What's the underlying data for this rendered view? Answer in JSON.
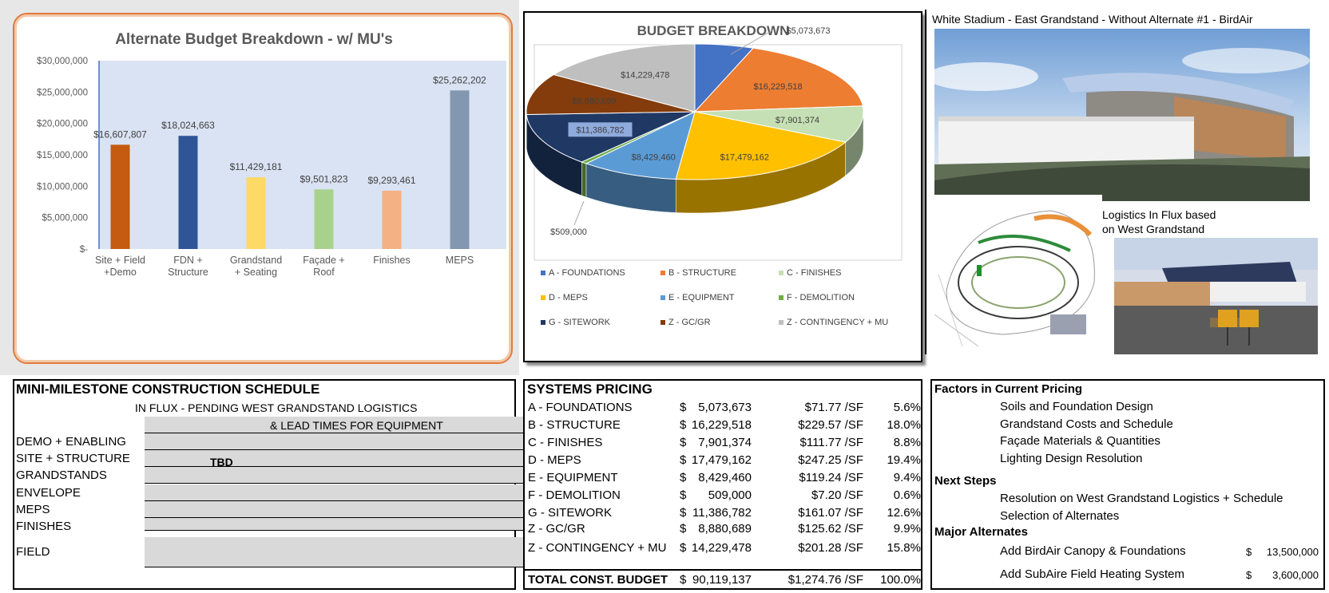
{
  "bar_chart": {
    "title": "Alternate Budget Breakdown - w/ MU's",
    "colors": [
      "#c55a11",
      "#2f5597",
      "#ffd966",
      "#a9d18e",
      "#f4b183",
      "#8497b0"
    ],
    "plot_bg": "#dae3f3"
  },
  "pie_chart": {
    "title": "BUDGET BREAKDOWN",
    "legend_order": [
      0,
      1,
      2,
      3,
      4,
      5,
      6,
      7,
      8
    ]
  },
  "chart_data": [
    {
      "type": "bar",
      "title": "Alternate Budget Breakdown - w/ MU's",
      "categories": [
        "Site + Field\n+Demo",
        "FDN +\nStructure",
        "Grandstand\n+ Seating",
        "Façade +\nRoof",
        "Finishes",
        "MEPS"
      ],
      "values": [
        16607807,
        18024663,
        11429181,
        9501823,
        9293461,
        25262202
      ],
      "value_labels": [
        "$16,607,807",
        "$18,024,663",
        "$11,429,181",
        "$9,501,823",
        "$9,293,461",
        "$25,262,202"
      ],
      "ytick_values": [
        30000000,
        25000000,
        20000000,
        15000000,
        10000000,
        5000000,
        0
      ],
      "ytick_labels": [
        "$30,000,000",
        "$25,000,000",
        "$20,000,000",
        "$15,000,000",
        "$10,000,000",
        "$5,000,000",
        "$-"
      ],
      "ylim": [
        0,
        30000000
      ],
      "xlabel": "",
      "ylabel": ""
    },
    {
      "type": "pie",
      "title": "BUDGET BREAKDOWN",
      "labels": [
        "A - FOUNDATIONS",
        "B - STRUCTURE",
        "C - FINISHES",
        "D - MEPS",
        "E - EQUIPMENT",
        "F - DEMOLITION",
        "G - SITEWORK",
        "Z - GC/GR",
        "Z - CONTINGENCY + MU"
      ],
      "values": [
        5073673,
        16229518,
        7901374,
        17479162,
        8429460,
        509000,
        11386782,
        8880689,
        14229478
      ],
      "value_labels": [
        "$5,073,673",
        "$16,229,518",
        "$7,901,374",
        "$17,479,162",
        "$8,429,460",
        "$509,000",
        "$11,386,782",
        "$8,880,689",
        "$14,229,478"
      ],
      "colors": [
        "#4472c4",
        "#ed7d31",
        "#c5e0b4",
        "#ffc000",
        "#5b9bd5",
        "#70ad47",
        "#203864",
        "#843c0c",
        "#bfbfbf"
      ],
      "legend_position": "bottom"
    }
  ],
  "images": {
    "stadium_caption": "White Stadium - East Grandstand - Without Alternate #1 - BirdAir",
    "logistics_caption_1": "Logistics In Flux based",
    "logistics_caption_2": "on West Grandstand"
  },
  "schedule": {
    "title": "MINI-MILESTONE CONSTRUCTION SCHEDULE",
    "note_1": "IN FLUX - PENDING WEST GRANDSTAND LOGISTICS",
    "note_2": "& LEAD TIMES FOR EQUIPMENT",
    "tbd": "TBD",
    "rows": [
      "DEMO + ENABLING",
      "SITE + STRUCTURE",
      "GRANDSTANDS",
      "ENVELOPE",
      "MEPS",
      "FINISHES",
      "FIELD"
    ]
  },
  "systems": {
    "title": "SYSTEMS PRICING",
    "rows": [
      {
        "name": "A - FOUNDATIONS",
        "cur": "$",
        "amount": "5,073,673",
        "psf": "$71.77 /SF",
        "pct": "5.6%"
      },
      {
        "name": "B - STRUCTURE",
        "cur": "$",
        "amount": "16,229,518",
        "psf": "$229.57 /SF",
        "pct": "18.0%"
      },
      {
        "name": "C - FINISHES",
        "cur": "$",
        "amount": "7,901,374",
        "psf": "$111.77 /SF",
        "pct": "8.8%"
      },
      {
        "name": "D - MEPS",
        "cur": "$",
        "amount": "17,479,162",
        "psf": "$247.25 /SF",
        "pct": "19.4%"
      },
      {
        "name": "E - EQUIPMENT",
        "cur": "$",
        "amount": "8,429,460",
        "psf": "$119.24 /SF",
        "pct": "9.4%"
      },
      {
        "name": "F - DEMOLITION",
        "cur": "$",
        "amount": "509,000",
        "psf": "$7.20 /SF",
        "pct": "0.6%"
      },
      {
        "name": "G - SITEWORK",
        "cur": "$",
        "amount": "11,386,782",
        "psf": "$161.07 /SF",
        "pct": "12.6%"
      },
      {
        "name": "Z - GC/GR",
        "cur": "$",
        "amount": "8,880,689",
        "psf": "$125.62 /SF",
        "pct": "9.9%"
      },
      {
        "name": "Z - CONTINGENCY + MU",
        "cur": "$",
        "amount": "14,229,478",
        "psf": "$201.28 /SF",
        "pct": "15.8%"
      }
    ],
    "total": {
      "name": "TOTAL CONST. BUDGET",
      "cur": "$",
      "amount": "90,119,137",
      "psf": "$1,274.76 /SF",
      "pct": "100.0%"
    }
  },
  "factors": {
    "title": "Factors in Current Pricing",
    "items": [
      "Soils and Foundation Design",
      "Grandstand Costs and Schedule",
      "Façade Materials & Quantities",
      "Lighting Design Resolution"
    ],
    "next_title": "Next Steps",
    "next_items": [
      "Resolution on West Grandstand Logistics + Schedule",
      "Selection of Alternates"
    ],
    "alt_title": "Major Alternates",
    "alternates": [
      {
        "name": "Add BirdAir Canopy & Foundations",
        "cur": "$",
        "amount": "13,500,000"
      },
      {
        "name": "Add SubAire Field Heating System",
        "cur": "$",
        "amount": "3,600,000"
      }
    ]
  }
}
